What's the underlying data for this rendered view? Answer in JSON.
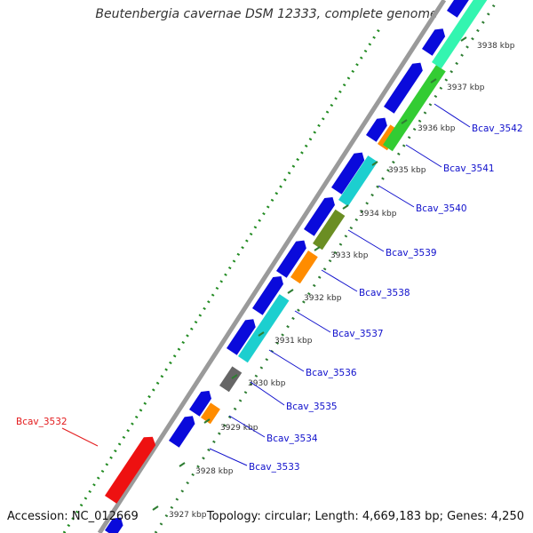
{
  "title": "Beutenbergia cavernae DSM 12333, complete genome",
  "footer": {
    "accession": "Accession: NC_012669",
    "summary": "Topology: circular; Length: 4,669,183 bp; Genes: 4,250"
  },
  "ticks": [
    {
      "pos_kbp": 3927,
      "label": "3927 kbp"
    },
    {
      "pos_kbp": 3928,
      "label": "3928 kbp"
    },
    {
      "pos_kbp": 3929,
      "label": "3929 kbp"
    },
    {
      "pos_kbp": 3930,
      "label": "3930 kbp"
    },
    {
      "pos_kbp": 3931,
      "label": "3931 kbp"
    },
    {
      "pos_kbp": 3932,
      "label": "3932 kbp"
    },
    {
      "pos_kbp": 3933,
      "label": "3933 kbp"
    },
    {
      "pos_kbp": 3934,
      "label": "3934 kbp"
    },
    {
      "pos_kbp": 3935,
      "label": "3935 kbp"
    },
    {
      "pos_kbp": 3936,
      "label": "3936 kbp"
    },
    {
      "pos_kbp": 3937,
      "label": "3937 kbp"
    },
    {
      "pos_kbp": 3938,
      "label": "3938 kbp"
    }
  ],
  "labeled_genes": [
    {
      "name": "Bcav_3532",
      "color": "#e31a1c"
    },
    {
      "name": "Bcav_3533",
      "color": "#1010cc"
    },
    {
      "name": "Bcav_3534",
      "color": "#1010cc"
    },
    {
      "name": "Bcav_3535",
      "color": "#1010cc"
    },
    {
      "name": "Bcav_3536",
      "color": "#1010cc"
    },
    {
      "name": "Bcav_3537",
      "color": "#1010cc"
    },
    {
      "name": "Bcav_3538",
      "color": "#1010cc"
    },
    {
      "name": "Bcav_3539",
      "color": "#1010cc"
    },
    {
      "name": "Bcav_3540",
      "color": "#1010cc"
    },
    {
      "name": "Bcav_3541",
      "color": "#1010cc"
    },
    {
      "name": "Bcav_3542",
      "color": "#1010cc"
    }
  ],
  "colors": {
    "cds_blue": "#0a0adb",
    "red_feature": "#ee1111",
    "cyan_feature": "#1ccfcf",
    "orange_feature": "#ff8c00",
    "olive_feature": "#6b8e23",
    "gray_feature": "#666666",
    "green_feature": "#33cc33",
    "mint_feature": "#33f5b0",
    "backbone": "#9a9a9a",
    "dotted_ring": "#228b22"
  }
}
